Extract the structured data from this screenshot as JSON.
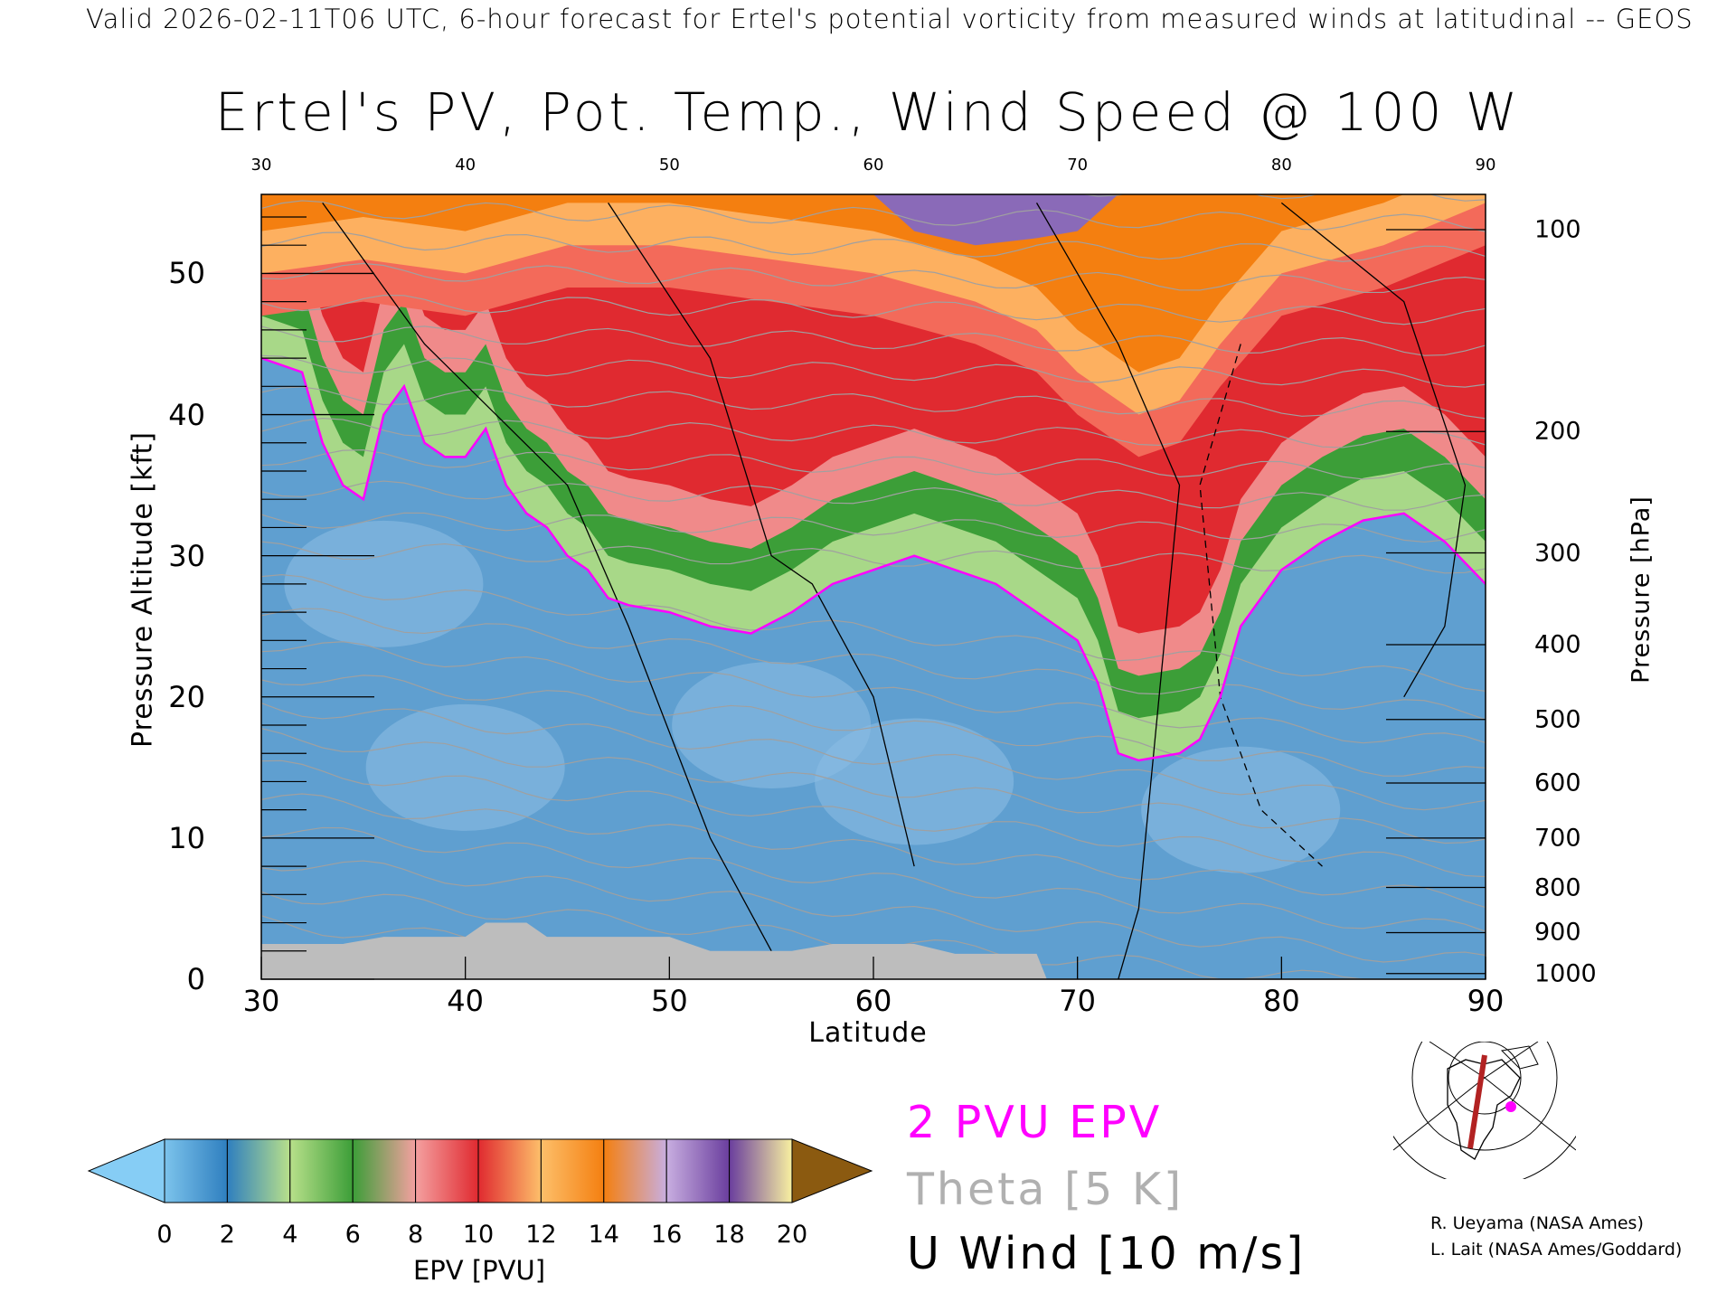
{
  "header": {
    "top_title": "Valid 2026-02-11T06 UTC, 6-hour forecast for Ertel's potential vorticity from measured winds at latitudinal -- GEOS",
    "main_title": "Ertel's PV, Pot. Temp., Wind Speed @ 100 W"
  },
  "chart_data": {
    "type": "heatmap",
    "title": "Ertel's PV, Pot. Temp., Wind Speed @ 100 W",
    "xlabel": "Latitude",
    "ylabel": "Pressure Altitude [kft]",
    "y2label": "Pressure [hPa]",
    "xlim": [
      30,
      90
    ],
    "ylim": [
      0,
      55.6
    ],
    "x_ticks": [
      "30",
      "40",
      "50",
      "60",
      "70",
      "80",
      "90"
    ],
    "top_ticks": [
      "30",
      "40",
      "50",
      "60",
      "70",
      "80",
      "90"
    ],
    "y_ticks": [
      "0",
      "10",
      "20",
      "30",
      "40",
      "50"
    ],
    "y2_ticks": [
      {
        "label": "100",
        "kft": 53.1
      },
      {
        "label": "200",
        "kft": 38.8
      },
      {
        "label": "300",
        "kft": 30.2
      },
      {
        "label": "400",
        "kft": 23.7
      },
      {
        "label": "500",
        "kft": 18.4
      },
      {
        "label": "600",
        "kft": 13.9
      },
      {
        "label": "700",
        "kft": 10.0
      },
      {
        "label": "800",
        "kft": 6.5
      },
      {
        "label": "900",
        "kft": 3.3
      },
      {
        "label": "1000",
        "kft": 0.4
      }
    ],
    "pv2_contour": [
      [
        30,
        44
      ],
      [
        32,
        43
      ],
      [
        33,
        38
      ],
      [
        34,
        35
      ],
      [
        35,
        34
      ],
      [
        36,
        40
      ],
      [
        37,
        42
      ],
      [
        38,
        38
      ],
      [
        39,
        37
      ],
      [
        40,
        37
      ],
      [
        41,
        39
      ],
      [
        42,
        35
      ],
      [
        43,
        33
      ],
      [
        44,
        32
      ],
      [
        45,
        30
      ],
      [
        46,
        29
      ],
      [
        47,
        27
      ],
      [
        48,
        26.5
      ],
      [
        50,
        26
      ],
      [
        52,
        25
      ],
      [
        54,
        24.5
      ],
      [
        56,
        26
      ],
      [
        58,
        28
      ],
      [
        60,
        29
      ],
      [
        62,
        30
      ],
      [
        64,
        29
      ],
      [
        66,
        28
      ],
      [
        68,
        26
      ],
      [
        70,
        24
      ],
      [
        71,
        21
      ],
      [
        72,
        16
      ],
      [
        73,
        15.5
      ],
      [
        75,
        16
      ],
      [
        76,
        17
      ],
      [
        77,
        20
      ],
      [
        78,
        25
      ],
      [
        80,
        29
      ],
      [
        82,
        31
      ],
      [
        84,
        32.5
      ],
      [
        86,
        33
      ],
      [
        88,
        31
      ],
      [
        90,
        28
      ]
    ],
    "red_top": [
      [
        30,
        50
      ],
      [
        35,
        51
      ],
      [
        40,
        50
      ],
      [
        45,
        52
      ],
      [
        50,
        52
      ],
      [
        55,
        51
      ],
      [
        60,
        50
      ],
      [
        65,
        48
      ],
      [
        68,
        46
      ],
      [
        70,
        43
      ],
      [
        73,
        40
      ],
      [
        75,
        41
      ],
      [
        77,
        45
      ],
      [
        80,
        50
      ],
      [
        85,
        52
      ],
      [
        90,
        55
      ]
    ],
    "purple_region": [
      [
        60,
        55.6
      ],
      [
        62,
        53
      ],
      [
        65,
        52
      ],
      [
        68,
        52.5
      ],
      [
        70,
        53
      ],
      [
        72,
        55.6
      ]
    ],
    "terrain": [
      [
        30,
        2.5
      ],
      [
        34,
        2.5
      ],
      [
        36,
        3
      ],
      [
        40,
        3
      ],
      [
        41,
        4
      ],
      [
        43,
        4
      ],
      [
        44,
        3
      ],
      [
        50,
        3
      ],
      [
        52,
        2
      ],
      [
        56,
        2
      ],
      [
        58,
        2.5
      ],
      [
        62,
        2.5
      ],
      [
        64,
        1.8
      ],
      [
        68,
        1.8
      ],
      [
        68.5,
        0
      ]
    ],
    "colorbar": {
      "label": "EPV [PVU]",
      "ticks": [
        "0",
        "2",
        "4",
        "6",
        "8",
        "10",
        "12",
        "14",
        "16",
        "18",
        "20"
      ],
      "colors": [
        "#7cc3ec",
        "#2f7fbf",
        "#b8e08a",
        "#3c9e38",
        "#f4a0a0",
        "#e02a30",
        "#fdbf6a",
        "#f47f10",
        "#c8aee0",
        "#6a3e9e",
        "#f8f0a0"
      ],
      "under_color": "#86cdf5",
      "over_color": "#8b5a10"
    },
    "legend": {
      "pv": "2 PVU EPV",
      "theta": "Theta [5 K]",
      "u": "U Wind [10 m/s]"
    },
    "colors": {
      "pv": "#ff00ff",
      "theta": "#b0b0b0",
      "u": "#000000"
    }
  },
  "credits": [
    "R. Ueyama (NASA Ames)",
    "L. Lait (NASA Ames/Goddard)"
  ]
}
